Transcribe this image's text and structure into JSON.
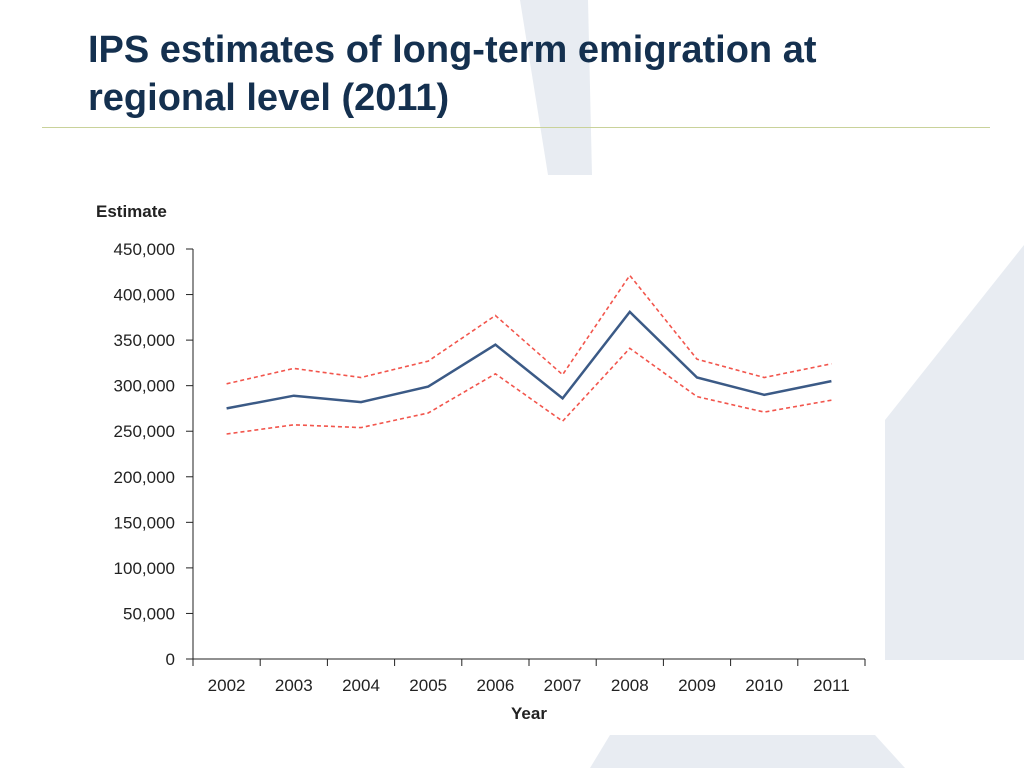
{
  "slide": {
    "title": "IPS estimates of long-term emigration at regional level (2011)"
  },
  "colors": {
    "title": "#14304f",
    "estimate_line": "#3b5a86",
    "interval_lines": "#f2554c",
    "axis": "#222222",
    "background_shape": "#e8ecf2"
  },
  "chart_data": {
    "type": "line",
    "ylabel": "Estimate",
    "xlabel": "Year",
    "x": [
      2002,
      2003,
      2004,
      2005,
      2006,
      2007,
      2008,
      2009,
      2010,
      2011
    ],
    "xtick_labels": [
      "2002",
      "2003",
      "2004",
      "2005",
      "2006",
      "2007",
      "2008",
      "2009",
      "2010",
      "2011"
    ],
    "ylim": [
      0,
      450000
    ],
    "ytick_values": [
      0,
      50000,
      100000,
      150000,
      200000,
      250000,
      300000,
      350000,
      400000,
      450000
    ],
    "ytick_labels": [
      "0",
      "50,000",
      "100,000",
      "150,000",
      "200,000",
      "250,000",
      "300,000",
      "350,000",
      "400,000",
      "450,000"
    ],
    "grid": false,
    "legend": "none",
    "series": [
      {
        "role": "estimate",
        "style": "solid",
        "values": [
          275000,
          289000,
          282000,
          299000,
          345000,
          286000,
          381000,
          309000,
          290000,
          305000
        ]
      },
      {
        "role": "upper-bound",
        "style": "dashed",
        "values": [
          302000,
          319000,
          309000,
          327000,
          377000,
          312000,
          421000,
          329000,
          309000,
          324000
        ]
      },
      {
        "role": "lower-bound",
        "style": "dashed",
        "values": [
          247000,
          257000,
          254000,
          270000,
          313000,
          261000,
          341000,
          288000,
          271000,
          284000
        ]
      }
    ]
  }
}
